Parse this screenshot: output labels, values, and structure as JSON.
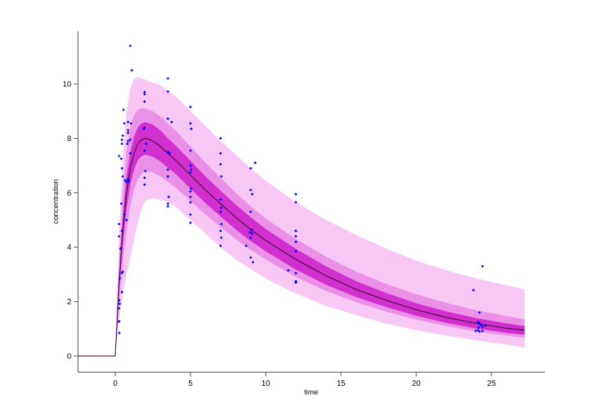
{
  "chart_data": {
    "type": "line",
    "subtype": "visual predictive check with prediction bands and observed scatter",
    "title": "",
    "xlabel": "time",
    "ylabel": "concentration",
    "xlim": [
      -2.5,
      28.5
    ],
    "ylim": [
      -0.6,
      11.8
    ],
    "x_ticks": [
      0,
      5,
      10,
      15,
      20,
      25
    ],
    "y_ticks": [
      0,
      2,
      4,
      6,
      8,
      10
    ],
    "grid": false,
    "legend": null,
    "colors": {
      "median_line": "#3a0030",
      "band_outer": "#f9c8f6",
      "band_inner": "#c400c0",
      "points": "#0000ff",
      "axis": "#555555"
    },
    "median": {
      "name": "median prediction",
      "x": [
        -2.5,
        0,
        0.25,
        0.5,
        0.75,
        1.0,
        1.25,
        1.5,
        1.75,
        2.0,
        2.25,
        2.5,
        3,
        3.5,
        4,
        5,
        6,
        7,
        8,
        9,
        10,
        12,
        14,
        16,
        18,
        20,
        22,
        24,
        26,
        27.2
      ],
      "y": [
        0,
        0,
        2.6,
        4.6,
        6.0,
        6.9,
        7.45,
        7.8,
        7.95,
        8.0,
        7.97,
        7.9,
        7.7,
        7.45,
        7.2,
        6.65,
        6.1,
        5.6,
        5.1,
        4.65,
        4.25,
        3.55,
        2.95,
        2.45,
        2.05,
        1.7,
        1.42,
        1.2,
        1.02,
        0.95
      ]
    },
    "bands": [
      {
        "name": "outer prediction interval (approx 5-95%)",
        "x": [
          0,
          0.25,
          0.5,
          0.75,
          1.0,
          1.25,
          1.5,
          1.75,
          2.0,
          2.5,
          3,
          3.5,
          4,
          5,
          6,
          7,
          8,
          9,
          10,
          12,
          14,
          16,
          18,
          20,
          22,
          24,
          26,
          27.2
        ],
        "lower": [
          0,
          1.3,
          2.3,
          3.0,
          3.6,
          4.3,
          4.9,
          5.4,
          5.7,
          5.8,
          5.75,
          5.65,
          5.5,
          5.0,
          4.5,
          4.0,
          3.55,
          3.2,
          2.85,
          2.3,
          1.85,
          1.5,
          1.2,
          0.95,
          0.75,
          0.58,
          0.42,
          0.3
        ],
        "upper": [
          0.1,
          4.5,
          7.2,
          9.0,
          9.85,
          10.2,
          10.25,
          10.2,
          10.15,
          10.05,
          9.95,
          9.75,
          9.55,
          9.0,
          8.45,
          7.9,
          7.4,
          6.9,
          6.45,
          5.65,
          5.0,
          4.45,
          3.95,
          3.5,
          3.15,
          2.85,
          2.6,
          2.45
        ]
      },
      {
        "name": "middle prediction interval",
        "x": [
          0,
          0.25,
          0.5,
          0.75,
          1.0,
          1.25,
          1.5,
          1.75,
          2.0,
          2.5,
          3,
          3.5,
          4,
          5,
          6,
          7,
          8,
          9,
          10,
          12,
          14,
          16,
          18,
          20,
          22,
          24,
          26,
          27.2
        ],
        "lower": [
          0,
          1.9,
          3.4,
          4.6,
          5.5,
          6.1,
          6.5,
          6.7,
          6.8,
          6.75,
          6.6,
          6.4,
          6.2,
          5.7,
          5.2,
          4.75,
          4.3,
          3.9,
          3.55,
          2.9,
          2.4,
          1.98,
          1.63,
          1.34,
          1.1,
          0.9,
          0.75,
          0.68
        ],
        "upper": [
          0.05,
          3.4,
          5.9,
          7.5,
          8.4,
          8.85,
          9.05,
          9.1,
          9.1,
          9.0,
          8.8,
          8.55,
          8.3,
          7.7,
          7.1,
          6.55,
          6.0,
          5.5,
          5.05,
          4.3,
          3.65,
          3.1,
          2.65,
          2.27,
          1.95,
          1.68,
          1.47,
          1.35
        ]
      },
      {
        "name": "inner prediction interval",
        "x": [
          0,
          0.25,
          0.5,
          0.75,
          1.0,
          1.25,
          1.5,
          1.75,
          2.0,
          2.5,
          3,
          3.5,
          4,
          5,
          6,
          7,
          8,
          9,
          10,
          12,
          14,
          16,
          18,
          20,
          22,
          24,
          26,
          27.2
        ],
        "lower": [
          0,
          2.3,
          4.1,
          5.4,
          6.3,
          6.85,
          7.2,
          7.35,
          7.4,
          7.33,
          7.15,
          6.92,
          6.7,
          6.15,
          5.62,
          5.13,
          4.65,
          4.23,
          3.85,
          3.18,
          2.62,
          2.17,
          1.8,
          1.48,
          1.22,
          1.01,
          0.85,
          0.79
        ],
        "upper": [
          0.02,
          2.9,
          5.1,
          6.6,
          7.5,
          8.05,
          8.4,
          8.55,
          8.6,
          8.5,
          8.3,
          8.0,
          7.75,
          7.18,
          6.6,
          6.08,
          5.57,
          5.1,
          4.67,
          3.94,
          3.3,
          2.75,
          2.32,
          1.94,
          1.64,
          1.39,
          1.2,
          1.1
        ]
      }
    ],
    "series": [
      {
        "name": "observed",
        "type": "scatter",
        "points": [
          [
            0.27,
            0.85
          ],
          [
            0.25,
            1.27
          ],
          [
            0.26,
            1.28
          ],
          [
            0.25,
            1.75
          ],
          [
            0.3,
            1.92
          ],
          [
            0.27,
            2.05
          ],
          [
            0.45,
            2.35
          ],
          [
            0.3,
            2.85
          ],
          [
            0.45,
            3.05
          ],
          [
            0.5,
            3.1
          ],
          [
            0.35,
            3.95
          ],
          [
            0.25,
            4.4
          ],
          [
            0.25,
            4.85
          ],
          [
            0.45,
            4.6
          ],
          [
            0.6,
            5.2
          ],
          [
            0.75,
            5.0
          ],
          [
            0.4,
            5.6
          ],
          [
            0.25,
            7.35
          ],
          [
            0.45,
            6.9
          ],
          [
            0.4,
            7.25
          ],
          [
            0.5,
            6.6
          ],
          [
            0.6,
            8.55
          ],
          [
            0.55,
            9.05
          ],
          [
            0.45,
            7.8
          ],
          [
            0.45,
            7.95
          ],
          [
            0.5,
            8.1
          ],
          [
            0.65,
            6.45
          ],
          [
            0.75,
            6.4
          ],
          [
            0.85,
            6.5
          ],
          [
            0.9,
            6.42
          ],
          [
            0.8,
            7.8
          ],
          [
            0.85,
            7.9
          ],
          [
            0.85,
            8.2
          ],
          [
            0.85,
            8.3
          ],
          [
            0.85,
            8.6
          ],
          [
            1.0,
            11.4
          ],
          [
            1.1,
            10.5
          ],
          [
            1.0,
            7.45
          ],
          [
            1.0,
            7.95
          ],
          [
            1.05,
            8.55
          ],
          [
            1.95,
            9.62
          ],
          [
            1.95,
            9.7
          ],
          [
            1.95,
            9.35
          ],
          [
            1.95,
            8.4
          ],
          [
            1.95,
            7.55
          ],
          [
            1.9,
            8.35
          ],
          [
            2.0,
            6.8
          ],
          [
            1.95,
            6.55
          ],
          [
            1.95,
            6.3
          ],
          [
            2.05,
            7.8
          ],
          [
            3.5,
            10.2
          ],
          [
            3.5,
            9.72
          ],
          [
            3.5,
            8.72
          ],
          [
            3.75,
            8.6
          ],
          [
            3.5,
            7.5
          ],
          [
            3.6,
            7.45
          ],
          [
            3.5,
            6.85
          ],
          [
            3.5,
            6.6
          ],
          [
            3.55,
            5.85
          ],
          [
            3.5,
            5.6
          ],
          [
            3.5,
            5.5
          ],
          [
            5.0,
            9.15
          ],
          [
            5.0,
            8.55
          ],
          [
            5.05,
            8.35
          ],
          [
            5.0,
            7.55
          ],
          [
            5.0,
            7.0
          ],
          [
            5.05,
            6.85
          ],
          [
            5.0,
            6.75
          ],
          [
            5.05,
            6.15
          ],
          [
            5.0,
            6.05
          ],
          [
            5.0,
            5.85
          ],
          [
            5.0,
            5.65
          ],
          [
            5.0,
            5.2
          ],
          [
            5.0,
            4.9
          ],
          [
            7.0,
            8.0
          ],
          [
            7.0,
            7.45
          ],
          [
            7.0,
            7.05
          ],
          [
            7.05,
            6.6
          ],
          [
            7.0,
            5.75
          ],
          [
            7.05,
            5.45
          ],
          [
            7.0,
            5.3
          ],
          [
            7.05,
            4.85
          ],
          [
            7.0,
            4.6
          ],
          [
            7.05,
            4.35
          ],
          [
            7.0,
            4.05
          ],
          [
            9.0,
            6.9
          ],
          [
            9.3,
            7.1
          ],
          [
            9.0,
            6.1
          ],
          [
            9.1,
            5.95
          ],
          [
            9.0,
            5.3
          ],
          [
            9.05,
            4.65
          ],
          [
            9.1,
            4.5
          ],
          [
            8.95,
            4.55
          ],
          [
            9.0,
            4.35
          ],
          [
            8.7,
            4.05
          ],
          [
            9.0,
            3.62
          ],
          [
            9.15,
            3.45
          ],
          [
            12.0,
            5.95
          ],
          [
            12.0,
            5.65
          ],
          [
            12.0,
            4.6
          ],
          [
            12.0,
            4.4
          ],
          [
            12.0,
            4.2
          ],
          [
            12.0,
            3.85
          ],
          [
            11.5,
            3.15
          ],
          [
            12.0,
            3.05
          ],
          [
            12.0,
            2.75
          ],
          [
            12.0,
            2.7
          ],
          [
            24.4,
            3.3
          ],
          [
            23.8,
            2.42
          ],
          [
            24.2,
            1.6
          ],
          [
            24.1,
            1.25
          ],
          [
            24.2,
            1.2
          ],
          [
            24.3,
            1.15
          ],
          [
            24.15,
            1.05
          ],
          [
            24.6,
            1.12
          ],
          [
            24.4,
            1.08
          ],
          [
            24.1,
            0.95
          ],
          [
            23.95,
            0.92
          ],
          [
            24.2,
            0.9
          ],
          [
            24.4,
            0.92
          ]
        ]
      }
    ]
  }
}
